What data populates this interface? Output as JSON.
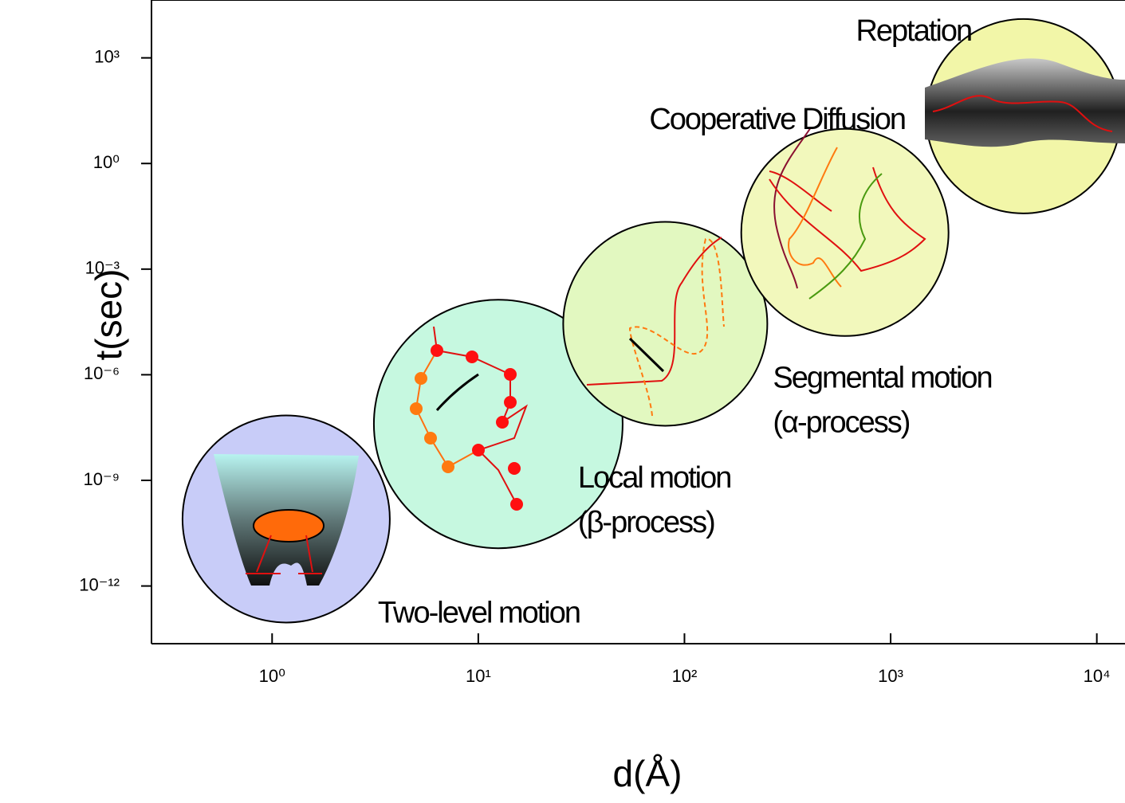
{
  "chart_data": {
    "type": "scatter",
    "xlabel": "d(Å)",
    "ylabel": "t(sec)",
    "log_x": true,
    "log_y": true,
    "xlim": [
      0.26,
      13700
    ],
    "ylim": [
      2.3e-14,
      44000
    ],
    "xticks": [
      {
        "value": 1,
        "label": "10⁰"
      },
      {
        "value": 10,
        "label": "10¹"
      },
      {
        "value": 100,
        "label": "10²"
      },
      {
        "value": 1000,
        "label": "10³"
      },
      {
        "value": 10000,
        "label": "10⁴"
      }
    ],
    "yticks": [
      {
        "value": 1e-12,
        "label": "10⁻¹²"
      },
      {
        "value": 1e-09,
        "label": "10⁻⁹"
      },
      {
        "value": 1e-06,
        "label": "10⁻⁶"
      },
      {
        "value": 0.001,
        "label": "10⁻³"
      },
      {
        "value": 1,
        "label": "10⁰"
      },
      {
        "value": 1000,
        "label": "10³"
      }
    ],
    "series": [
      {
        "name": "Two-level motion",
        "color": "#c8ccf8",
        "x": [
          1.17
        ],
        "values": [
          8e-11
        ]
      },
      {
        "name": "Local motion",
        "sublabel": "(β-process)",
        "color": "#c6f8e0",
        "x": [
          12.5
        ],
        "values": [
          4e-08
        ]
      },
      {
        "name": "Segmental motion",
        "sublabel": "(α-process)",
        "color": "#e2f8c0",
        "x": [
          80.7
        ],
        "values": [
          2.8e-05
        ]
      },
      {
        "name": "Cooperative Diffusion",
        "color": "#f2f8bc",
        "x": [
          600
        ],
        "values": [
          0.011
        ]
      },
      {
        "name": "Reptation",
        "color": "#f2f6a8",
        "x": [
          4400
        ],
        "values": [
          22
        ]
      }
    ]
  }
}
